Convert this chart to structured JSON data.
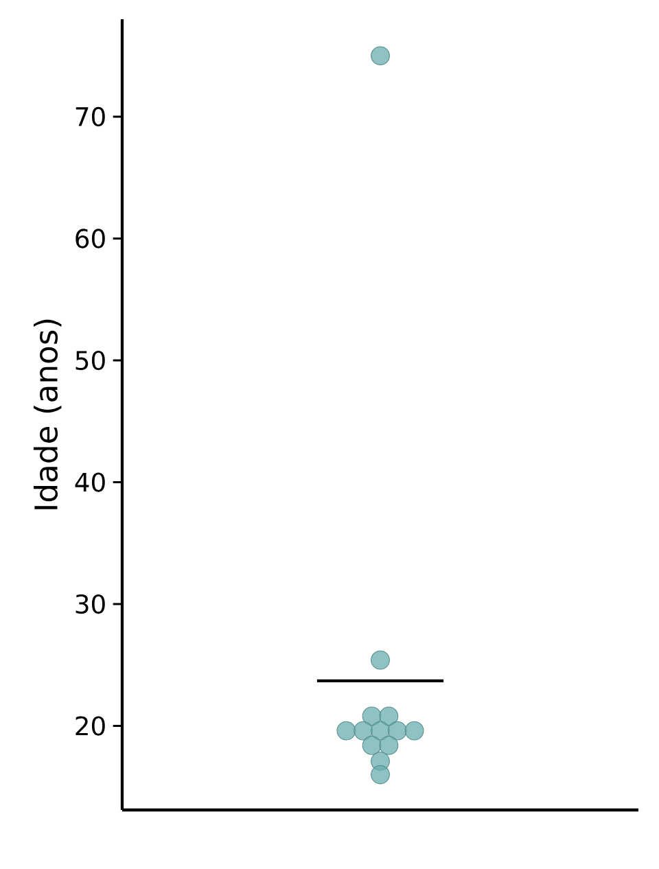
{
  "chart_data": {
    "type": "scatter",
    "ylabel": "Idade (anos)",
    "categories": [
      null
    ],
    "series": [
      {
        "x": [
          null,
          null,
          null,
          null,
          null,
          null,
          null,
          null,
          null,
          null,
          null,
          null,
          null
        ],
        "values": [
          75,
          25.4,
          20.8,
          20.8,
          19.6,
          19.6,
          19.6,
          19.6,
          19.6,
          18.4,
          18.4,
          17.1,
          16.0
        ]
      }
    ],
    "color": "#6aaeae",
    "marker": "circle",
    "ylim": [
      13.1,
      78
    ],
    "yticks": [
      20,
      30,
      40,
      50,
      60,
      70
    ],
    "ref_lines": [
      {
        "axis": "y",
        "value": 23.7,
        "color": "#000000"
      }
    ]
  }
}
